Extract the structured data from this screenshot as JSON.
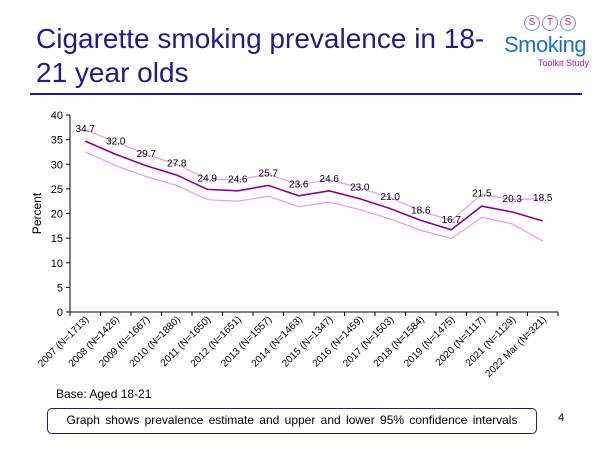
{
  "slide": {
    "title": "Cigarette smoking prevalence in 18-21 year olds",
    "base": "Base: Aged 18-21",
    "footnote": "Graph shows prevalence  estimate and upper and lower 95% confidence intervals",
    "page_number": "4"
  },
  "logo": {
    "letters": [
      "S",
      "T",
      "S"
    ],
    "word": "Smoking",
    "subtitle": "Toolkit Study"
  },
  "colors": {
    "estimate": "#8b008b",
    "ci": "#e0a0e8",
    "title": "#1e1e82",
    "axis": "#000000",
    "grid": "#c8c8c8"
  },
  "chart_data": {
    "type": "line",
    "title": "",
    "xlabel": "",
    "ylabel": "Percent",
    "ylim": [
      0,
      40
    ],
    "yticks": [
      0,
      5,
      10,
      15,
      20,
      25,
      30,
      35,
      40
    ],
    "categories": [
      "2007 (N=1713)",
      "2008 (N=1426)",
      "2009 (N=1667)",
      "2010 (N=1880)",
      "2011 (N=1650)",
      "2012 (N=1651)",
      "2013 (N=1557)",
      "2014 (N=1463)",
      "2015 (N=1347)",
      "2016 (N=1459)",
      "2017 (N=1503)",
      "2018 (N=1584)",
      "2019 (N=1475)",
      "2020 (N=1117)",
      "2021 (N=1129)",
      "2022 Mar (N=321)"
    ],
    "series": [
      {
        "name": "Estimate",
        "values": [
          34.7,
          32.0,
          29.7,
          27.8,
          24.9,
          24.6,
          25.7,
          23.6,
          24.6,
          23.0,
          21.0,
          18.6,
          16.7,
          21.5,
          20.3,
          18.5
        ]
      },
      {
        "name": "Upper 95% CI",
        "values": [
          37.0,
          34.5,
          32.0,
          30.0,
          27.0,
          26.8,
          28.0,
          25.8,
          26.9,
          25.2,
          23.2,
          20.5,
          18.6,
          23.9,
          22.8,
          23.0
        ]
      },
      {
        "name": "Lower 95% CI",
        "values": [
          32.5,
          29.7,
          27.5,
          25.7,
          22.8,
          22.5,
          23.5,
          21.4,
          22.3,
          20.8,
          18.9,
          16.6,
          14.9,
          19.2,
          17.9,
          14.4
        ]
      }
    ],
    "data_labels": [
      "34.7",
      "32.0",
      "29.7",
      "27.8",
      "24.9",
      "24.6",
      "25.7",
      "23.6",
      "24.6",
      "23.0",
      "21.0",
      "18.6",
      "16.7",
      "21.5",
      "20.3",
      "18.5"
    ],
    "grid": false,
    "legend": "none"
  }
}
